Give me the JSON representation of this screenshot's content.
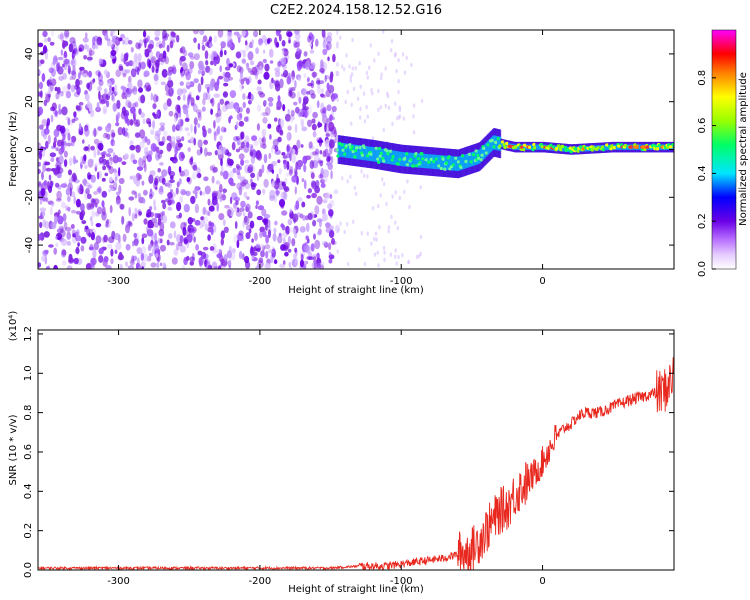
{
  "title": "C2E2.2024.158.12.52.G16",
  "colors": {
    "snr_line": "#e8281e",
    "spectrogram_scatter": "#7a1fe0",
    "colormap": [
      "#ffffff",
      "#e6ccff",
      "#b266ff",
      "#6a00e6",
      "#0000ff",
      "#00e6ff",
      "#00ff66",
      "#99ff00",
      "#ffff00",
      "#ff8000",
      "#ff0000",
      "#ff00ff"
    ]
  },
  "chart_data": [
    {
      "type": "heatmap",
      "xlabel": "Height of straight line (km)",
      "ylabel": "Frequency (Hz)",
      "xlim": [
        -357,
        93
      ],
      "ylim": [
        -50,
        50
      ],
      "x_ticks": [
        -300,
        -200,
        -100,
        0
      ],
      "y_ticks": [
        -40,
        -20,
        0,
        20,
        40
      ],
      "x_tick_labels": [
        "-300",
        "-200",
        "-100",
        "0"
      ],
      "y_tick_labels": [
        "-40",
        "-20",
        "0",
        "20",
        "40"
      ],
      "grid": false,
      "colorbar": {
        "label": "Normalized spectral amplitude",
        "range": [
          0,
          1
        ],
        "ticks": [
          0.0,
          0.2,
          0.4,
          0.6,
          0.8
        ],
        "tick_labels": [
          "0.0",
          "0.2",
          "0.4",
          "0.6",
          "0.8"
        ],
        "placement": "right"
      },
      "noise_region_x": [
        -357,
        -145
      ],
      "signal_trace": [
        {
          "x": -145,
          "freq": 0
        },
        {
          "x": -120,
          "freq": -2
        },
        {
          "x": -100,
          "freq": -4
        },
        {
          "x": -80,
          "freq": -5
        },
        {
          "x": -60,
          "freq": -6
        },
        {
          "x": -45,
          "freq": -3
        },
        {
          "x": -35,
          "freq": 3
        },
        {
          "x": -20,
          "freq": 1
        },
        {
          "x": 0,
          "freq": 1
        },
        {
          "x": 20,
          "freq": 0
        },
        {
          "x": 50,
          "freq": 1
        },
        {
          "x": 93,
          "freq": 1
        }
      ]
    },
    {
      "type": "line",
      "xlabel": "Height of straight line (km)",
      "ylabel": "SNR (10 * v/v)",
      "y_multiplier": "(x10⁴)",
      "xlim": [
        -357,
        93
      ],
      "ylim": [
        0,
        1.22
      ],
      "x_ticks": [
        -300,
        -200,
        -100,
        0
      ],
      "y_ticks": [
        0.0,
        0.2,
        0.4,
        0.6,
        0.8,
        1.0,
        1.2
      ],
      "x_tick_labels": [
        "-300",
        "-200",
        "-100",
        "0"
      ],
      "y_tick_labels": [
        "0.0",
        "0.2",
        "0.4",
        "0.6",
        "0.8",
        "1.0",
        "1.2"
      ],
      "grid": false,
      "series": [
        {
          "x": [
            -357,
            -300,
            -200,
            -150,
            -130,
            -110,
            -100,
            -90,
            -80,
            -70,
            -60,
            -50,
            -45,
            -40,
            -35,
            -30,
            -25,
            -20,
            -15,
            -10,
            -5,
            0,
            5,
            10,
            15,
            20,
            25,
            30,
            35,
            40,
            50,
            60,
            70,
            80,
            85,
            90,
            93
          ],
          "y": [
            0.01,
            0.01,
            0.01,
            0.01,
            0.02,
            0.02,
            0.03,
            0.04,
            0.05,
            0.06,
            0.08,
            0.1,
            0.15,
            0.2,
            0.25,
            0.3,
            0.32,
            0.38,
            0.42,
            0.45,
            0.5,
            0.55,
            0.62,
            0.68,
            0.72,
            0.74,
            0.78,
            0.8,
            0.8,
            0.8,
            0.83,
            0.86,
            0.88,
            0.9,
            0.9,
            0.95,
            1.0
          ]
        }
      ]
    }
  ]
}
